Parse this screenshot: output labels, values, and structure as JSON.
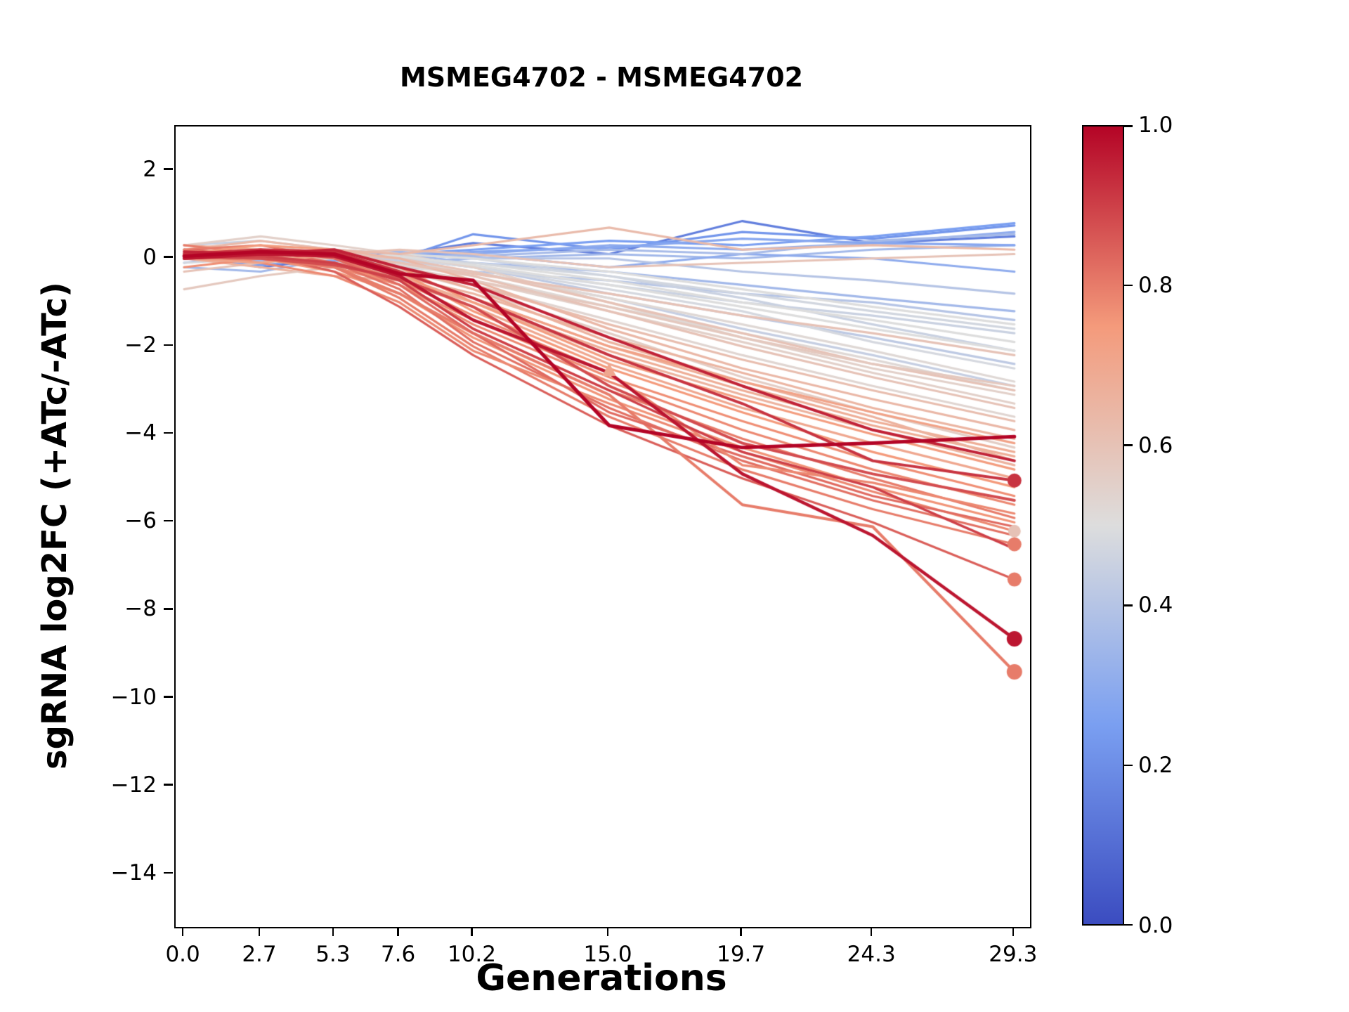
{
  "chart_data": {
    "type": "line",
    "title": "MSMEG4702 - MSMEG4702",
    "xlabel": "Generations",
    "ylabel": "sgRNA log2FC (+ATc/-ATc)",
    "x": [
      0.0,
      2.7,
      5.3,
      7.6,
      10.2,
      15.0,
      19.7,
      24.3,
      29.3
    ],
    "xlim": [
      -0.3,
      29.85
    ],
    "ylim": [
      -15.2,
      3.0
    ],
    "x_ticks": {
      "values": [
        0.0,
        2.7,
        5.3,
        7.6,
        10.2,
        15.0,
        19.7,
        24.3,
        29.3
      ],
      "labels": [
        "0.0",
        "2.7",
        "5.3",
        "7.6",
        "10.2",
        "15.0",
        "19.7",
        "24.3",
        "29.3"
      ]
    },
    "y_ticks": {
      "values": [
        2,
        0,
        -2,
        -4,
        -6,
        -8,
        -10,
        -12,
        -14
      ],
      "labels": [
        "2",
        "0",
        "−2",
        "−4",
        "−6",
        "−8",
        "−10",
        "−12",
        "−14"
      ]
    },
    "grid": false,
    "legend": "colorbar-right",
    "colormap": {
      "name": "coolwarm",
      "positions": [
        0,
        0.25,
        0.5,
        0.75,
        1
      ],
      "colors": [
        "#3b4cc0",
        "#7a9ff1",
        "#dddddd",
        "#f49a7b",
        "#b40426"
      ]
    },
    "colorbar": {
      "ticks": {
        "values": [
          0.0,
          0.2,
          0.4,
          0.6,
          0.8,
          1.0
        ],
        "labels": [
          "0.0",
          "0.2",
          "0.4",
          "0.6",
          "0.8",
          "1.0"
        ]
      },
      "min": 0.0,
      "max": 1.0
    },
    "series": [
      {
        "c": 0.15,
        "y": [
          0.1,
          -0.2,
          0.0,
          0.1,
          0.35,
          0.1,
          0.85,
          0.35,
          0.5
        ]
      },
      {
        "c": 0.22,
        "y": [
          0.0,
          -0.1,
          0.1,
          0.0,
          0.55,
          0.2,
          0.6,
          0.45,
          0.75
        ]
      },
      {
        "c": 0.3,
        "y": [
          -0.1,
          0.1,
          0.0,
          0.1,
          0.1,
          0.3,
          0.2,
          0.35,
          0.6
        ]
      },
      {
        "c": 0.35,
        "y": [
          0.2,
          0.0,
          0.1,
          -0.1,
          0.0,
          0.1,
          0.0,
          0.2,
          0.3
        ]
      },
      {
        "c": 0.3,
        "y": [
          0.0,
          0.15,
          -0.1,
          0.0,
          0.1,
          -0.2,
          0.1,
          0.0,
          -0.3
        ]
      },
      {
        "c": 0.4,
        "y": [
          0.1,
          0.0,
          0.2,
          0.1,
          0.0,
          0.0,
          -0.3,
          -0.5,
          -0.8
        ]
      },
      {
        "c": 0.35,
        "y": [
          -0.2,
          -0.3,
          0.0,
          0.1,
          -0.1,
          -0.3,
          -0.6,
          -0.9,
          -1.2
        ]
      },
      {
        "c": 0.4,
        "y": [
          0.0,
          0.1,
          0.0,
          -0.2,
          -0.3,
          -0.5,
          -0.8,
          -1.0,
          -1.4
        ]
      },
      {
        "c": 0.45,
        "y": [
          0.1,
          0.2,
          0.1,
          0.0,
          -0.2,
          -0.6,
          -1.0,
          -1.3,
          -1.7
        ]
      },
      {
        "c": 0.25,
        "y": [
          0.0,
          -0.15,
          0.05,
          0.1,
          0.2,
          0.4,
          0.3,
          0.5,
          0.8
        ]
      },
      {
        "c": 0.45,
        "y": [
          0.3,
          0.4,
          0.2,
          0.1,
          0.0,
          -0.4,
          -0.9,
          -1.5,
          -2.1
        ]
      },
      {
        "c": 0.42,
        "y": [
          0.0,
          0.1,
          -0.1,
          0.0,
          -0.2,
          -0.8,
          -1.3,
          -1.8,
          -2.4
        ]
      },
      {
        "c": 0.36,
        "y": [
          0.05,
          -0.05,
          0.1,
          0.15,
          0.05,
          0.2,
          0.1,
          0.4,
          0.55
        ]
      },
      {
        "c": 0.28,
        "y": [
          0.0,
          0.05,
          -0.05,
          0.05,
          0.15,
          0.25,
          0.45,
          0.35,
          0.3
        ]
      },
      {
        "c": 0.44,
        "y": [
          0.1,
          0.0,
          0.05,
          -0.05,
          -0.3,
          -0.9,
          -1.6,
          -2.2,
          -2.9
        ]
      },
      {
        "c": 0.5,
        "y": [
          0.1,
          0.0,
          0.1,
          0.0,
          -0.1,
          -0.5,
          -1.0,
          -1.4,
          -1.9
        ]
      },
      {
        "c": 0.52,
        "y": [
          0.0,
          0.2,
          0.0,
          -0.1,
          -0.3,
          -0.9,
          -1.5,
          -2.1,
          -2.8
        ]
      },
      {
        "c": 0.48,
        "y": [
          -0.1,
          0.0,
          0.1,
          0.0,
          -0.2,
          -0.7,
          -1.2,
          -1.9,
          -2.5
        ]
      },
      {
        "c": 0.55,
        "y": [
          0.2,
          0.1,
          0.0,
          -0.2,
          -0.5,
          -1.2,
          -1.9,
          -2.6,
          -3.3
        ]
      },
      {
        "c": 0.5,
        "y": [
          0.0,
          -0.1,
          0.0,
          0.1,
          0.0,
          -0.3,
          -0.7,
          -1.1,
          -1.5
        ]
      },
      {
        "c": 0.53,
        "y": [
          0.1,
          0.0,
          -0.1,
          -0.3,
          -0.6,
          -1.4,
          -2.2,
          -2.9,
          -3.6
        ]
      },
      {
        "c": 0.47,
        "y": [
          0.0,
          0.1,
          0.2,
          0.0,
          -0.1,
          -0.4,
          -0.8,
          -1.2,
          -1.6
        ]
      },
      {
        "c": 0.55,
        "y": [
          0.3,
          0.5,
          0.3,
          0.1,
          -0.2,
          -1.0,
          -1.8,
          -2.5,
          -3.1
        ]
      },
      {
        "c": 0.5,
        "y": [
          0.0,
          0.05,
          0.1,
          0.05,
          -0.15,
          -0.6,
          -1.1,
          -1.6,
          -2.1
        ]
      },
      {
        "c": 0.52,
        "y": [
          0.05,
          0.1,
          0.0,
          -0.15,
          -0.4,
          -1.1,
          -1.7,
          -2.3,
          -3.0
        ]
      },
      {
        "c": 0.56,
        "y": [
          0.15,
          0.05,
          0.0,
          -0.25,
          -0.7,
          -1.7,
          -2.7,
          -3.5,
          -4.3
        ]
      },
      {
        "c": 0.6,
        "y": [
          0.2,
          0.3,
          0.1,
          0.0,
          -0.3,
          -1.0,
          -1.7,
          -2.4,
          -3.0
        ]
      },
      {
        "c": 0.62,
        "y": [
          0.0,
          0.1,
          0.0,
          -0.2,
          -0.6,
          -1.5,
          -2.3,
          -3.0,
          -3.7
        ]
      },
      {
        "c": 0.65,
        "y": [
          0.1,
          0.0,
          -0.1,
          -0.4,
          -0.8,
          -1.8,
          -2.6,
          -3.4,
          -4.1
        ]
      },
      {
        "c": 0.6,
        "y": [
          -0.3,
          -0.1,
          0.1,
          0.2,
          0.1,
          -0.2,
          -0.1,
          0.0,
          0.1
        ]
      },
      {
        "c": 0.63,
        "y": [
          0.2,
          0.4,
          0.2,
          0.1,
          0.3,
          0.7,
          0.2,
          0.3,
          0.2
        ]
      },
      {
        "c": 0.68,
        "y": [
          0.1,
          0.2,
          0.0,
          -0.3,
          -0.9,
          -2.0,
          -2.9,
          -3.7,
          -4.4
        ]
      },
      {
        "c": 0.66,
        "y": [
          0.0,
          -0.2,
          -0.4,
          -0.5,
          -1.0,
          -2.2,
          -3.1,
          -3.9,
          -4.7
        ]
      },
      {
        "c": 0.6,
        "y": [
          0.1,
          0.0,
          0.1,
          -0.1,
          -0.4,
          -1.2,
          -2.0,
          -2.7,
          -3.4
        ]
      },
      {
        "c": 0.7,
        "y": [
          0.2,
          0.1,
          -0.1,
          -0.5,
          -1.1,
          -2.4,
          -3.4,
          -4.2,
          -5.0
        ]
      },
      {
        "c": 0.64,
        "y": [
          0.0,
          0.1,
          0.2,
          0.0,
          -0.5,
          -1.6,
          -2.5,
          -3.2,
          -3.9
        ]
      },
      {
        "c": 0.58,
        "y": [
          -0.7,
          -0.4,
          -0.2,
          -0.3,
          -0.5,
          -1.1,
          -1.8,
          -2.4,
          -2.9
        ]
      },
      {
        "c": 0.68,
        "y": [
          0.3,
          0.2,
          0.0,
          -0.4,
          -1.0,
          -2.1,
          -3.0,
          -3.8,
          -4.5
        ]
      },
      {
        "c": 0.6,
        "y": [
          0.1,
          0.15,
          0.05,
          -0.1,
          -0.35,
          -0.8,
          -1.3,
          -1.7,
          -2.2
        ]
      },
      {
        "c": 0.66,
        "y": [
          0.2,
          0.1,
          0.0,
          -0.2,
          -0.7,
          -1.9,
          -2.8,
          -3.6,
          -4.6
        ]
      },
      {
        "c": 0.75,
        "y": [
          0.1,
          0.2,
          0.1,
          -0.3,
          -1.2,
          -2.5,
          -3.5,
          -4.4,
          -5.2
        ]
      },
      {
        "c": 0.78,
        "y": [
          0.0,
          0.1,
          -0.2,
          -0.6,
          -1.5,
          -2.8,
          -3.9,
          -4.8,
          -5.6
        ]
      },
      {
        "c": 0.8,
        "y": [
          0.2,
          0.3,
          0.0,
          -0.5,
          -1.6,
          -3.0,
          -4.1,
          -5.0,
          -5.9
        ]
      },
      {
        "c": 0.76,
        "y": [
          0.1,
          0.0,
          -0.3,
          -0.8,
          -1.8,
          -3.2,
          -4.3,
          -5.2,
          -6.0
        ]
      },
      {
        "c": 0.82,
        "y": [
          0.0,
          0.2,
          -0.1,
          -0.7,
          -1.9,
          -3.4,
          -4.6,
          -5.5,
          -6.3
        ]
      },
      {
        "c": 0.8,
        "y": [
          0.3,
          0.1,
          -0.2,
          -0.9,
          -2.0,
          -3.6,
          -4.8,
          -5.7,
          -6.5
        ]
      },
      {
        "c": 0.78,
        "y": [
          0.1,
          -0.1,
          -0.4,
          -1.0,
          -2.1,
          -3.3,
          -4.4,
          -5.3,
          -6.2
        ]
      },
      {
        "c": 0.85,
        "y": [
          0.2,
          0.1,
          -0.3,
          -1.1,
          -2.2,
          -3.8,
          -5.0,
          -6.0,
          -7.3
        ]
      },
      {
        "c": 0.8,
        "y": [
          0.0,
          0.0,
          -0.2,
          -0.8,
          -1.7,
          -3.1,
          -5.6,
          -6.1,
          -9.4
        ],
        "lw": 4
      },
      {
        "c": 0.74,
        "y": [
          0.1,
          0.3,
          0.2,
          -0.2,
          -1.0,
          -2.3,
          -3.2,
          -4.0,
          -4.8
        ]
      },
      {
        "c": 0.77,
        "y": [
          -0.2,
          0.0,
          -0.1,
          -0.6,
          -1.4,
          -2.7,
          -3.7,
          -4.6,
          -5.4
        ]
      },
      {
        "c": 0.83,
        "y": [
          0.1,
          0.2,
          0.0,
          -0.6,
          -1.7,
          -3.5,
          -4.5,
          -5.4,
          -6.1
        ]
      },
      {
        "c": 0.72,
        "y": [
          0.0,
          -0.1,
          0.1,
          -0.3,
          -0.9,
          -2.0,
          -2.8,
          -3.5,
          -4.2
        ]
      },
      {
        "c": 0.78,
        "y": [
          0.2,
          0.0,
          -0.1,
          -0.5,
          -1.3,
          -2.6,
          -4.7,
          -5.1,
          -5.8
        ]
      },
      {
        "c": 0.88,
        "y": [
          0.05,
          0.0,
          -0.15,
          -0.45,
          -1.1,
          -2.9,
          -4.2,
          -4.9,
          -5.5
        ],
        "lw": 4
      },
      {
        "c": 0.9,
        "y": [
          0.0,
          0.05,
          -0.1,
          -0.5,
          -1.6,
          -3.0,
          -4.4,
          -5.2,
          -6.6
        ],
        "lw": 3.5
      },
      {
        "c": 0.92,
        "y": [
          0.1,
          0.2,
          0.15,
          -0.3,
          -0.9,
          -2.2,
          -3.3,
          -4.6,
          -5.05
        ],
        "lw": 4
      },
      {
        "c": 0.95,
        "y": [
          0.15,
          0.1,
          0.2,
          -0.2,
          -0.6,
          -1.8,
          -2.9,
          -3.9,
          -4.6
        ],
        "lw": 4
      },
      {
        "c": 0.97,
        "y": [
          0.0,
          0.1,
          0.05,
          -0.4,
          -1.4,
          -2.6,
          -4.9,
          -6.3,
          -8.65
        ],
        "lw": 4.5
      },
      {
        "c": 1.0,
        "y": [
          0.05,
          0.15,
          0.1,
          -0.35,
          -0.5,
          -3.8,
          -4.3,
          -4.2,
          -4.05
        ],
        "lw": 5
      }
    ],
    "markers": [
      {
        "x": 15.0,
        "y": -2.55,
        "c": 0.7,
        "shape": "triangle",
        "size": 11
      },
      {
        "x": 29.3,
        "y": -5.05,
        "c": 0.92,
        "shape": "circle",
        "size": 10
      },
      {
        "x": 29.3,
        "y": -6.2,
        "c": 0.6,
        "shape": "circle",
        "size": 9
      },
      {
        "x": 29.3,
        "y": -6.5,
        "c": 0.8,
        "shape": "circle",
        "size": 10
      },
      {
        "x": 29.3,
        "y": -7.3,
        "c": 0.8,
        "shape": "circle",
        "size": 10
      },
      {
        "x": 29.3,
        "y": -8.65,
        "c": 0.97,
        "shape": "circle",
        "size": 11
      },
      {
        "x": 29.3,
        "y": -9.4,
        "c": 0.8,
        "shape": "circle",
        "size": 11
      }
    ]
  }
}
